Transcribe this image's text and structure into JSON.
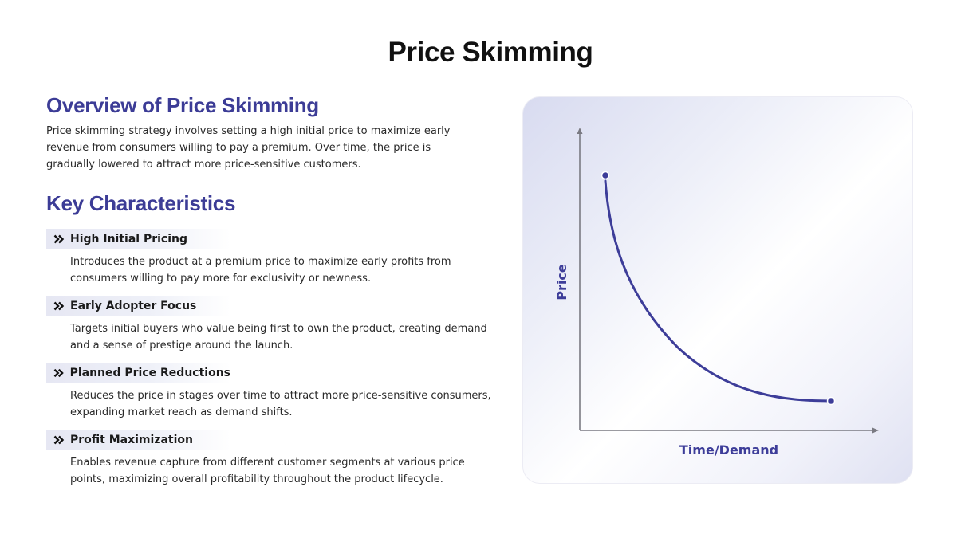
{
  "title": "Price Skimming",
  "overview": {
    "heading": "Overview of Price Skimming",
    "text": "Price skimming strategy involves setting a high initial price to maximize early revenue from consumers willing to pay a premium. Over time, the price is gradually lowered to attract more price-sensitive customers."
  },
  "characteristics": {
    "heading": "Key Characteristics",
    "items": [
      {
        "title": "High Initial Pricing",
        "description": "Introduces the product at a premium price to maximize early profits from consumers willing to pay more for exclusivity or newness."
      },
      {
        "title": "Early Adopter Focus",
        "description": "Targets initial buyers who value being first to own the product, creating demand and a sense of prestige around the launch."
      },
      {
        "title": "Planned Price Reductions",
        "description": "Reduces the price in stages over time to attract more price-sensitive consumers, expanding market reach as demand shifts."
      },
      {
        "title": "Profit Maximization",
        "description": "Enables revenue capture from different customer segments at various price points, maximizing overall profitability throughout the product lifecycle."
      }
    ]
  },
  "diagram": {
    "x_axis_label": "Time/Demand",
    "y_axis_label": "Price",
    "curve": "declining price curve from high start to low end",
    "accent_color": "#3d3d99"
  },
  "colors": {
    "heading": "#3c3c96",
    "curve": "#3d3d99",
    "axis": "#7a7a82"
  },
  "icons": {
    "bullet": "double-chevron-right-icon"
  }
}
